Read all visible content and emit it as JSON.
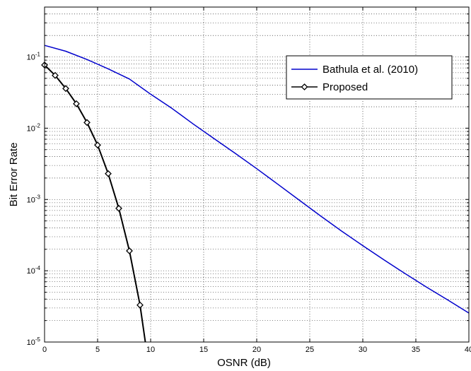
{
  "chart_data": {
    "type": "line",
    "title": "",
    "xlabel": "OSNR (dB)",
    "ylabel": "Bit Error Rate",
    "xlim": [
      0,
      40
    ],
    "ylim": [
      1e-05,
      0.5
    ],
    "yscale": "log",
    "grid": true,
    "legend_position": "top-right",
    "x_ticks": [
      {
        "value": 0,
        "label": "0"
      },
      {
        "value": 5,
        "label": "5"
      },
      {
        "value": 10,
        "label": "10"
      },
      {
        "value": 15,
        "label": "15"
      },
      {
        "value": 20,
        "label": "20"
      },
      {
        "value": 25,
        "label": "25"
      },
      {
        "value": 30,
        "label": "30"
      },
      {
        "value": 35,
        "label": "35"
      },
      {
        "value": 40,
        "label": "40"
      }
    ],
    "y_ticks": [
      {
        "value": 1e-05,
        "base": "10",
        "exp": "-5"
      },
      {
        "value": 0.0001,
        "base": "10",
        "exp": "-4"
      },
      {
        "value": 0.001,
        "base": "10",
        "exp": "-3"
      },
      {
        "value": 0.01,
        "base": "10",
        "exp": "-2"
      },
      {
        "value": 0.1,
        "base": "10",
        "exp": "-1"
      }
    ],
    "series": [
      {
        "name": "Bathula et al. (2010)",
        "color": "#0000cc",
        "marker": "none",
        "x": [
          0,
          2,
          4,
          6,
          8,
          10,
          12,
          14,
          16,
          18,
          20,
          22,
          24,
          26,
          28,
          30,
          32,
          34,
          36,
          38,
          40
        ],
        "y": [
          0.145,
          0.12,
          0.092,
          0.068,
          0.049,
          0.03,
          0.019,
          0.0115,
          0.0071,
          0.0044,
          0.0027,
          0.00163,
          0.00098,
          0.00059,
          0.00036,
          0.000225,
          0.000142,
          9.1e-05,
          5.9e-05,
          3.9e-05,
          2.55e-05
        ]
      },
      {
        "name": "Proposed",
        "color": "#000000",
        "marker": "diamond",
        "x": [
          0,
          1,
          2,
          3,
          4,
          5,
          6,
          7,
          8,
          9,
          9.5
        ],
        "y": [
          0.077,
          0.055,
          0.036,
          0.022,
          0.012,
          0.0058,
          0.0023,
          0.00075,
          0.00019,
          3.3e-05,
          1e-05
        ],
        "marker_x": [
          0,
          1,
          2,
          3,
          4,
          5,
          6,
          7,
          8,
          9
        ],
        "marker_y": [
          0.077,
          0.055,
          0.036,
          0.022,
          0.012,
          0.0058,
          0.0023,
          0.00075,
          0.00019,
          3.3e-05
        ]
      }
    ]
  }
}
